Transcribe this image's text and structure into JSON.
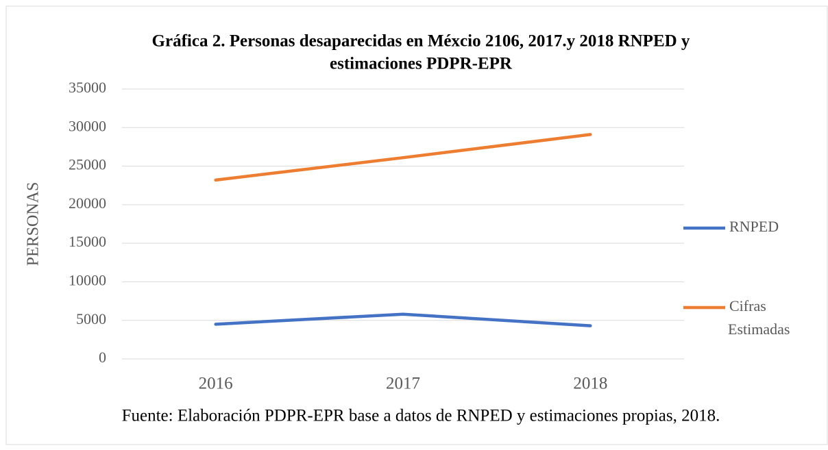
{
  "chart_data": {
    "type": "line",
    "title": [
      "Gráfica 2. Personas desaparecidas en Méxcio 2106, 2017.y 2018 RNPED y",
      "estimaciones PDPR-EPR"
    ],
    "y_label": "PERSONAS",
    "source": "Fuente: Elaboración PDPR-EPR base a datos de RNPED y estimaciones propias, 2018.",
    "categories": [
      "2016",
      "2017",
      "2018"
    ],
    "series": [
      {
        "name": "RNPED",
        "color": "#4472c4",
        "values": [
          4500,
          5800,
          4300
        ]
      },
      {
        "name": "Cifras Estimadas",
        "color": "#ed7d31",
        "values": [
          23200,
          26100,
          29100
        ]
      }
    ],
    "ylim": [
      0,
      35000
    ],
    "yticks": [
      0,
      5000,
      10000,
      15000,
      20000,
      25000,
      30000,
      35000
    ],
    "grid": true,
    "legend": "right"
  }
}
